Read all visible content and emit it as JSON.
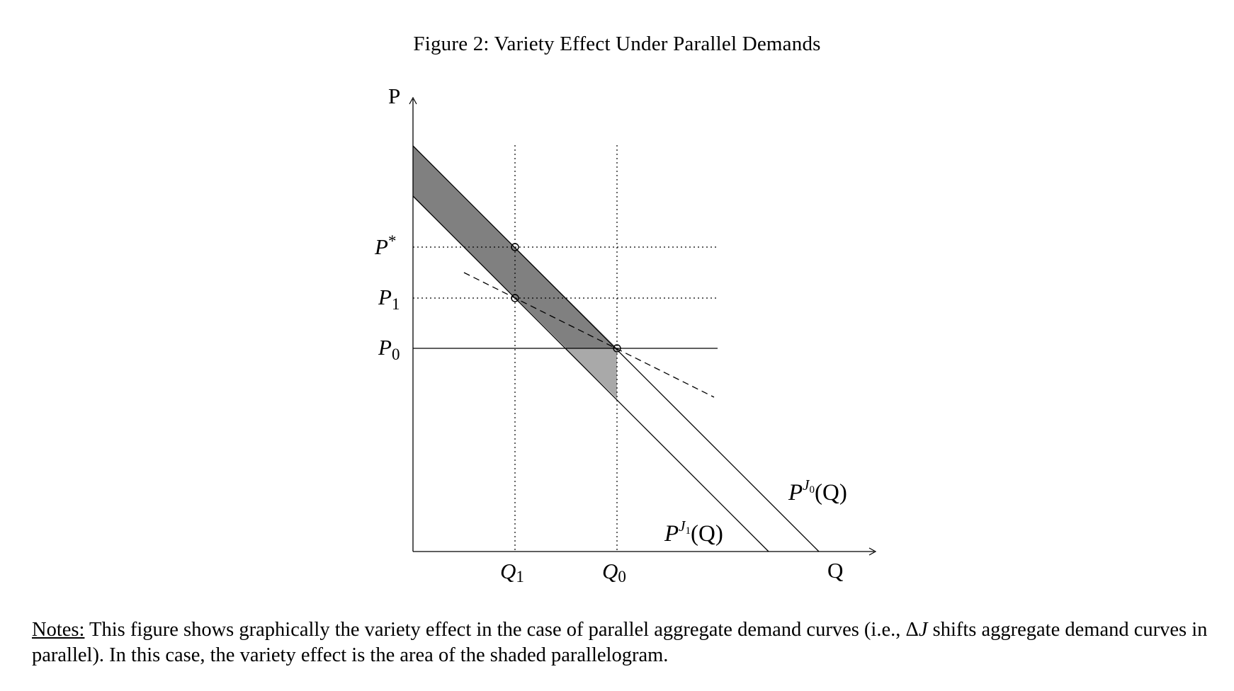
{
  "figure": {
    "title": "Figure 2: Variety Effect Under Parallel Demands"
  },
  "axes": {
    "y_label": "P",
    "x_label": "Q"
  },
  "price_labels": {
    "p_star": {
      "base": "P",
      "sup": "*"
    },
    "p1": {
      "base": "P",
      "sub": "1"
    },
    "p0": {
      "base": "P",
      "sub": "0"
    }
  },
  "quantity_labels": {
    "q1": {
      "base": "Q",
      "sub": "1"
    },
    "q0": {
      "base": "Q",
      "sub": "0"
    }
  },
  "curves": {
    "demand_j0": {
      "base": "P",
      "sup": "J",
      "sup_sub": "0",
      "arg": "(Q)"
    },
    "demand_j1": {
      "base": "P",
      "sup": "J",
      "sup_sub": "1",
      "arg": "(Q)"
    }
  },
  "colors": {
    "parallelogram": "#808080",
    "triangle": "#a9a9a9",
    "lines": "#000000"
  },
  "notes": {
    "label": "Notes:",
    "text_before_delta": " This figure shows graphically the variety effect in the case of parallel aggregate demand curves (i.e., ",
    "delta_symbol": "Δ",
    "delta_var": "J",
    "text_after_delta": " shifts aggregate demand curves in parallel). In this case, the variety effect is the area of the shaded parallelogram."
  }
}
